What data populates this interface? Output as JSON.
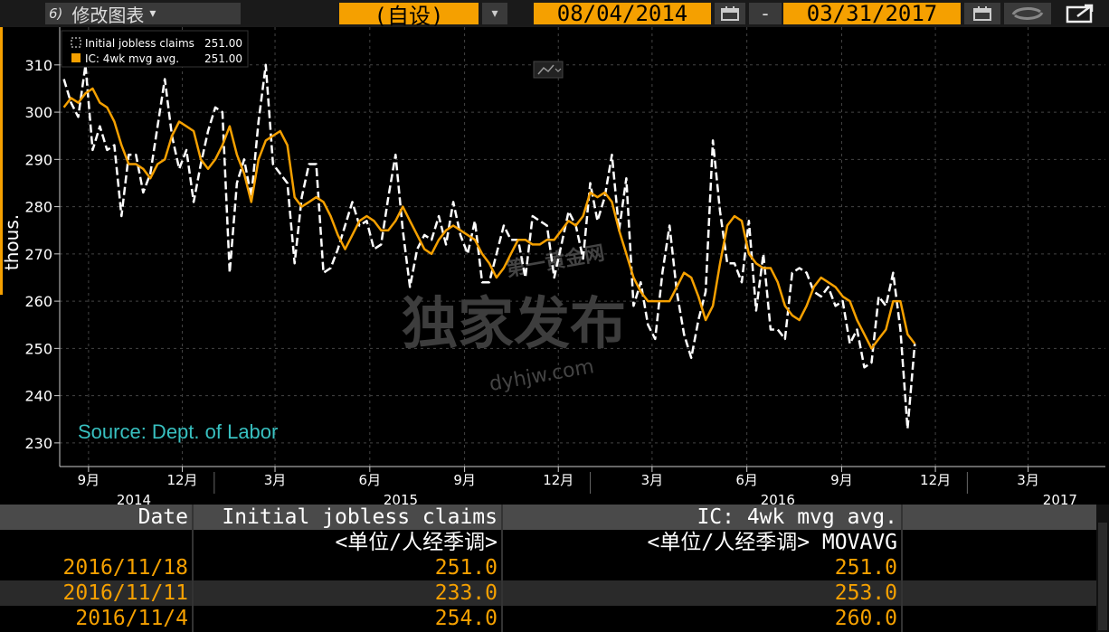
{
  "toolbar": {
    "menu_number": "6)",
    "menu_label": "修改图表",
    "menu_caret": "▾",
    "period_label": "(自设)",
    "period_caret": "▾",
    "start_date": "08/04/2014",
    "date_separator": "-",
    "end_date": "03/31/2017"
  },
  "legend": [
    {
      "label": "Initial jobless claims",
      "value": "251.00",
      "color": "#ffffff"
    },
    {
      "label": "IC: 4wk mvg avg.",
      "value": "251.00",
      "color": "#f5a000"
    }
  ],
  "source": "Source: Dept. of Labor",
  "watermark": {
    "line1": "第一黄金网",
    "line2": "独家发布",
    "line3": "dyhjw.com"
  },
  "colors": {
    "accent": "#f5a000",
    "series_claims": "#ffffff",
    "series_avg": "#f5a000",
    "source_text": "#38c0c0"
  },
  "chart_data": {
    "type": "line",
    "ylabel": "thous.",
    "ylim": [
      225,
      318
    ],
    "yticks": [
      230,
      240,
      250,
      260,
      270,
      280,
      290,
      300,
      310
    ],
    "xlim": [
      "2014-08-04",
      "2017-05-15"
    ],
    "xticks": [
      {
        "date": "2014-09-01",
        "label": "9月"
      },
      {
        "date": "2014-12-01",
        "label": "12月"
      },
      {
        "date": "2015-03-01",
        "label": "3月"
      },
      {
        "date": "2015-06-01",
        "label": "6月"
      },
      {
        "date": "2015-09-01",
        "label": "9月"
      },
      {
        "date": "2015-12-01",
        "label": "12月"
      },
      {
        "date": "2016-03-01",
        "label": "3月"
      },
      {
        "date": "2016-06-01",
        "label": "6月"
      },
      {
        "date": "2016-09-01",
        "label": "9月"
      },
      {
        "date": "2016-12-01",
        "label": "12月"
      },
      {
        "date": "2017-03-01",
        "label": "3月"
      }
    ],
    "years": [
      {
        "label": "2014",
        "date": "2014-10-15"
      },
      {
        "label": "2015",
        "date": "2015-07-01"
      },
      {
        "label": "2016",
        "date": "2016-07-01"
      },
      {
        "label": "2017",
        "date": "2017-04-01"
      }
    ],
    "year_dividers": [
      "2015-01-01",
      "2016-01-01",
      "2017-01-01"
    ],
    "start_date": "2014-08-08",
    "interval_days": 7,
    "series": [
      {
        "name": "Initial jobless claims",
        "style": "dashed",
        "color": "#ffffff",
        "values": [
          307,
          302,
          299,
          310,
          292,
          297,
          292,
          293,
          278,
          291,
          291,
          283,
          287,
          297,
          307,
          295,
          288,
          292,
          281,
          289,
          296,
          301,
          300,
          266,
          285,
          290,
          282,
          298,
          310,
          289,
          287,
          285,
          268,
          282,
          289,
          289,
          266,
          267,
          271,
          276,
          281,
          276,
          277,
          271,
          272,
          282,
          291,
          275,
          263,
          271,
          274,
          273,
          278,
          272,
          281,
          274,
          270,
          277,
          264,
          264,
          270,
          276,
          273,
          273,
          265,
          278,
          277,
          276,
          265,
          272,
          279,
          276,
          269,
          285,
          277,
          282,
          291,
          275,
          286,
          259,
          264,
          255,
          252,
          266,
          276,
          262,
          253,
          248,
          256,
          262,
          294,
          279,
          268,
          268,
          264,
          277,
          258,
          270,
          254,
          254,
          252,
          266,
          267,
          266,
          262,
          261,
          263,
          259,
          260,
          251,
          254,
          246,
          247,
          261,
          259,
          266,
          254,
          233,
          251
        ],
        "note": "Bound list; weekly from start_date"
      },
      {
        "name": "IC: 4wk mvg avg.",
        "style": "solid",
        "color": "#f5a000",
        "values": [
          301,
          303,
          302,
          304,
          305,
          302,
          301,
          298,
          293,
          289,
          289,
          288,
          286,
          289,
          290,
          295,
          298,
          297,
          296,
          290,
          288,
          290,
          293,
          297,
          291,
          287,
          281,
          290,
          294,
          295,
          296,
          293,
          282,
          280,
          281,
          282,
          281,
          278,
          274,
          271,
          274,
          277,
          278,
          277,
          275,
          275,
          277,
          280,
          277,
          274,
          271,
          270,
          273,
          275,
          276,
          275,
          274,
          273,
          270,
          268,
          265,
          267,
          270,
          273,
          273,
          272,
          272,
          273,
          273,
          275,
          277,
          276,
          278,
          283,
          282,
          283,
          281,
          275,
          270,
          265,
          262,
          260,
          260,
          260,
          260,
          263,
          266,
          265,
          261,
          256,
          259,
          268,
          276,
          278,
          277,
          270,
          268,
          267,
          267,
          264,
          259,
          257,
          256,
          259,
          263,
          265,
          264,
          263,
          261,
          260,
          256,
          253,
          250,
          252,
          254,
          260,
          260,
          253,
          251
        ],
        "note": "Bound list; weekly from start_date"
      }
    ]
  },
  "table": {
    "headers": [
      "Date",
      "Initial jobless claims",
      "IC: 4wk mvg avg."
    ],
    "units": [
      "",
      "<单位/人经季调>",
      "<单位/人经季调> MOVAVG"
    ],
    "rows": [
      [
        "2016/11/18",
        "251.0",
        "251.0"
      ],
      [
        "2016/11/11",
        "233.0",
        "253.0"
      ],
      [
        "2016/11/4",
        "254.0",
        "260.0"
      ]
    ]
  }
}
